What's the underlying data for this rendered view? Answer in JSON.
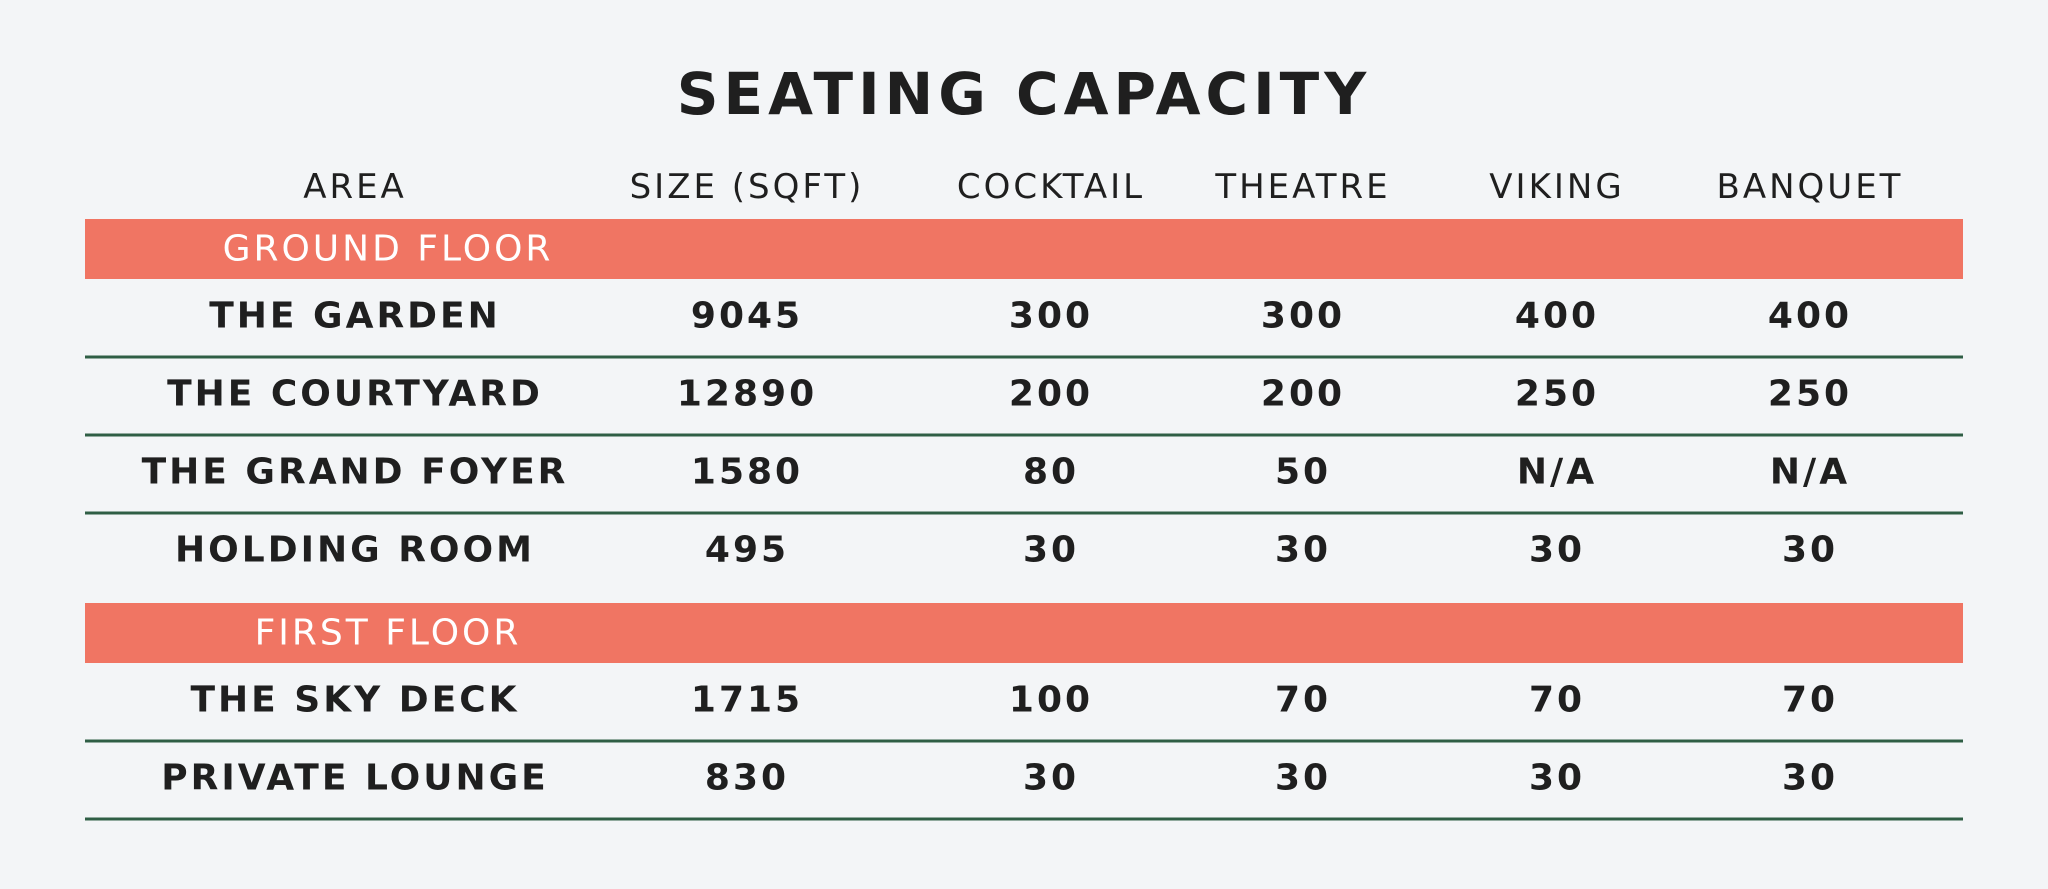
{
  "title": "SEATING CAPACITY",
  "table": {
    "header": [
      "AREA",
      "SIZE (SQFT)",
      "COCKTAIL",
      "THEATRE",
      "VIKING",
      "BANQUET"
    ],
    "sections": [
      {
        "label": "GROUND FLOOR",
        "rows": [
          [
            "THE GARDEN",
            9045,
            300,
            300,
            400,
            400
          ],
          [
            "THE COURTYARD",
            12890,
            200,
            200,
            250,
            250
          ],
          [
            "THE GRAND FOYER",
            1580,
            80,
            50,
            "N/A",
            "N/A"
          ],
          [
            "HOLDING ROOM",
            495,
            30,
            30,
            30,
            30
          ]
        ]
      },
      {
        "label": "FIRST FLOOR",
        "rows": [
          [
            "THE SKY DECK",
            1715,
            100,
            70,
            70,
            70
          ],
          [
            "PRIVATE LOUNGE",
            830,
            30,
            30,
            30,
            30
          ]
        ]
      }
    ]
  }
}
